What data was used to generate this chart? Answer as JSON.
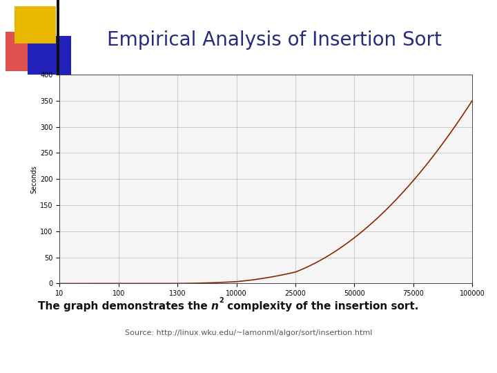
{
  "title": "Empirical Analysis of Insertion Sort",
  "ylabel": "Seconds",
  "xtick_labels": [
    "10",
    "100",
    "1300",
    "10000",
    "25000",
    "50000",
    "75000",
    "100000"
  ],
  "yticks": [
    0,
    50,
    100,
    150,
    200,
    250,
    300,
    350,
    400
  ],
  "ylim": [
    0,
    400
  ],
  "curve_color": "#8B2500",
  "grid_color": "#aaaaaa",
  "bg_color": "#ffffff",
  "plot_bg": "#f5f5f5",
  "caption_main": "The graph demonstrates the ",
  "caption_italic": "n",
  "caption_super": "2",
  "caption_tail": " complexity of the insertion sort.",
  "source": "Source: http://linux.wku.edu/~lamonml/algor/sort/insertion.html",
  "title_fontsize": 20,
  "axis_label_fontsize": 7,
  "ylabel_fontsize": 7,
  "caption_fontsize": 11,
  "source_fontsize": 8,
  "scale_factor": 3.5e-08,
  "deco_red": "#e05050",
  "deco_blue": "#2222bb",
  "deco_gold": "#e8b800",
  "title_color": "#2a2a7a"
}
